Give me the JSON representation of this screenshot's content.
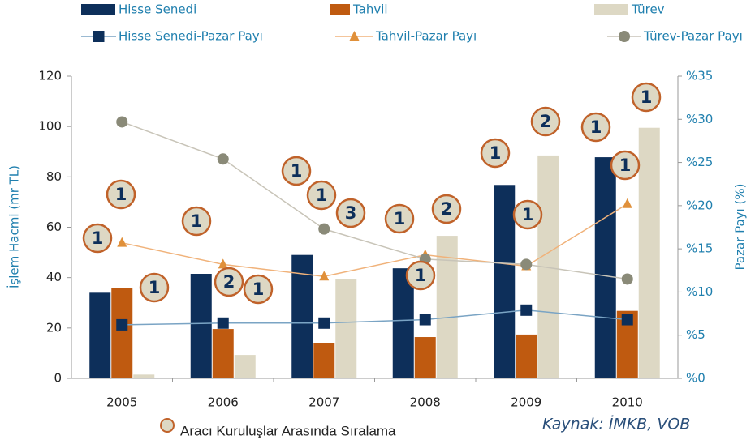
{
  "chart_data": {
    "type": "bar",
    "categories": [
      "2005",
      "2006",
      "2007",
      "2008",
      "2009",
      "2010"
    ],
    "ylabel": "İşlem Hacmi (mr TL)",
    "y2label": "Pazar Payı (%)",
    "ylim": [
      0,
      120
    ],
    "yticks": [
      0,
      20,
      40,
      60,
      80,
      100,
      120
    ],
    "y2lim": [
      0,
      35
    ],
    "y2ticks": [
      {
        "value": 0,
        "label": "%0"
      },
      {
        "value": 5,
        "label": "%5"
      },
      {
        "value": 10,
        "label": "%10"
      },
      {
        "value": 15,
        "label": "%15"
      },
      {
        "value": 20,
        "label": "%20"
      },
      {
        "value": 25,
        "label": "%25"
      },
      {
        "value": 30,
        "label": "%30"
      },
      {
        "value": 35,
        "label": "%35"
      }
    ],
    "series": [
      {
        "name": "Hisse Senedi",
        "type": "bar",
        "color": "#0d2f5a",
        "values": [
          34,
          41.5,
          49,
          43.7,
          76.8,
          87.8
        ]
      },
      {
        "name": "Tahvil",
        "type": "bar",
        "color": "#bf5a10",
        "values": [
          36,
          19.6,
          14,
          16.4,
          17.4,
          26.8
        ]
      },
      {
        "name": "Türev",
        "type": "bar",
        "color": "#ddd8c4",
        "values": [
          1.5,
          9.3,
          39.5,
          56.6,
          88.5,
          99.5
        ]
      },
      {
        "name": "Hisse Senedi-Pazar Payı",
        "type": "line",
        "axis": "y2",
        "color": "#7aa4c4",
        "marker_color": "#0d2f5a",
        "marker": "square",
        "values": [
          6.2,
          6.4,
          6.4,
          6.8,
          7.9,
          6.8
        ]
      },
      {
        "name": "Tahvil-Pazar Payı",
        "type": "line",
        "axis": "y2",
        "color": "#f0b27a",
        "marker_color": "#e0903a",
        "marker": "triangle",
        "values": [
          15.7,
          13.2,
          11.8,
          14.3,
          13.0,
          20.2
        ]
      },
      {
        "name": "Türev-Pazar Payı",
        "type": "line",
        "axis": "y2",
        "color": "#c8c4b8",
        "marker_color": "#8a8a78",
        "marker": "circle",
        "values": [
          29.7,
          25.4,
          17.3,
          13.8,
          13.2,
          11.5
        ]
      }
    ],
    "rankings": [
      "1",
      "1",
      "1",
      "1",
      "2",
      "1",
      "1",
      "1",
      "3",
      "1",
      "1",
      "2",
      "1",
      "1",
      "2",
      "1",
      "1",
      "1"
    ],
    "rankings_legend": "Aracı Kuruluşlar Arasında Sıralama",
    "source": "Kaynak: İMKB, VOB"
  }
}
